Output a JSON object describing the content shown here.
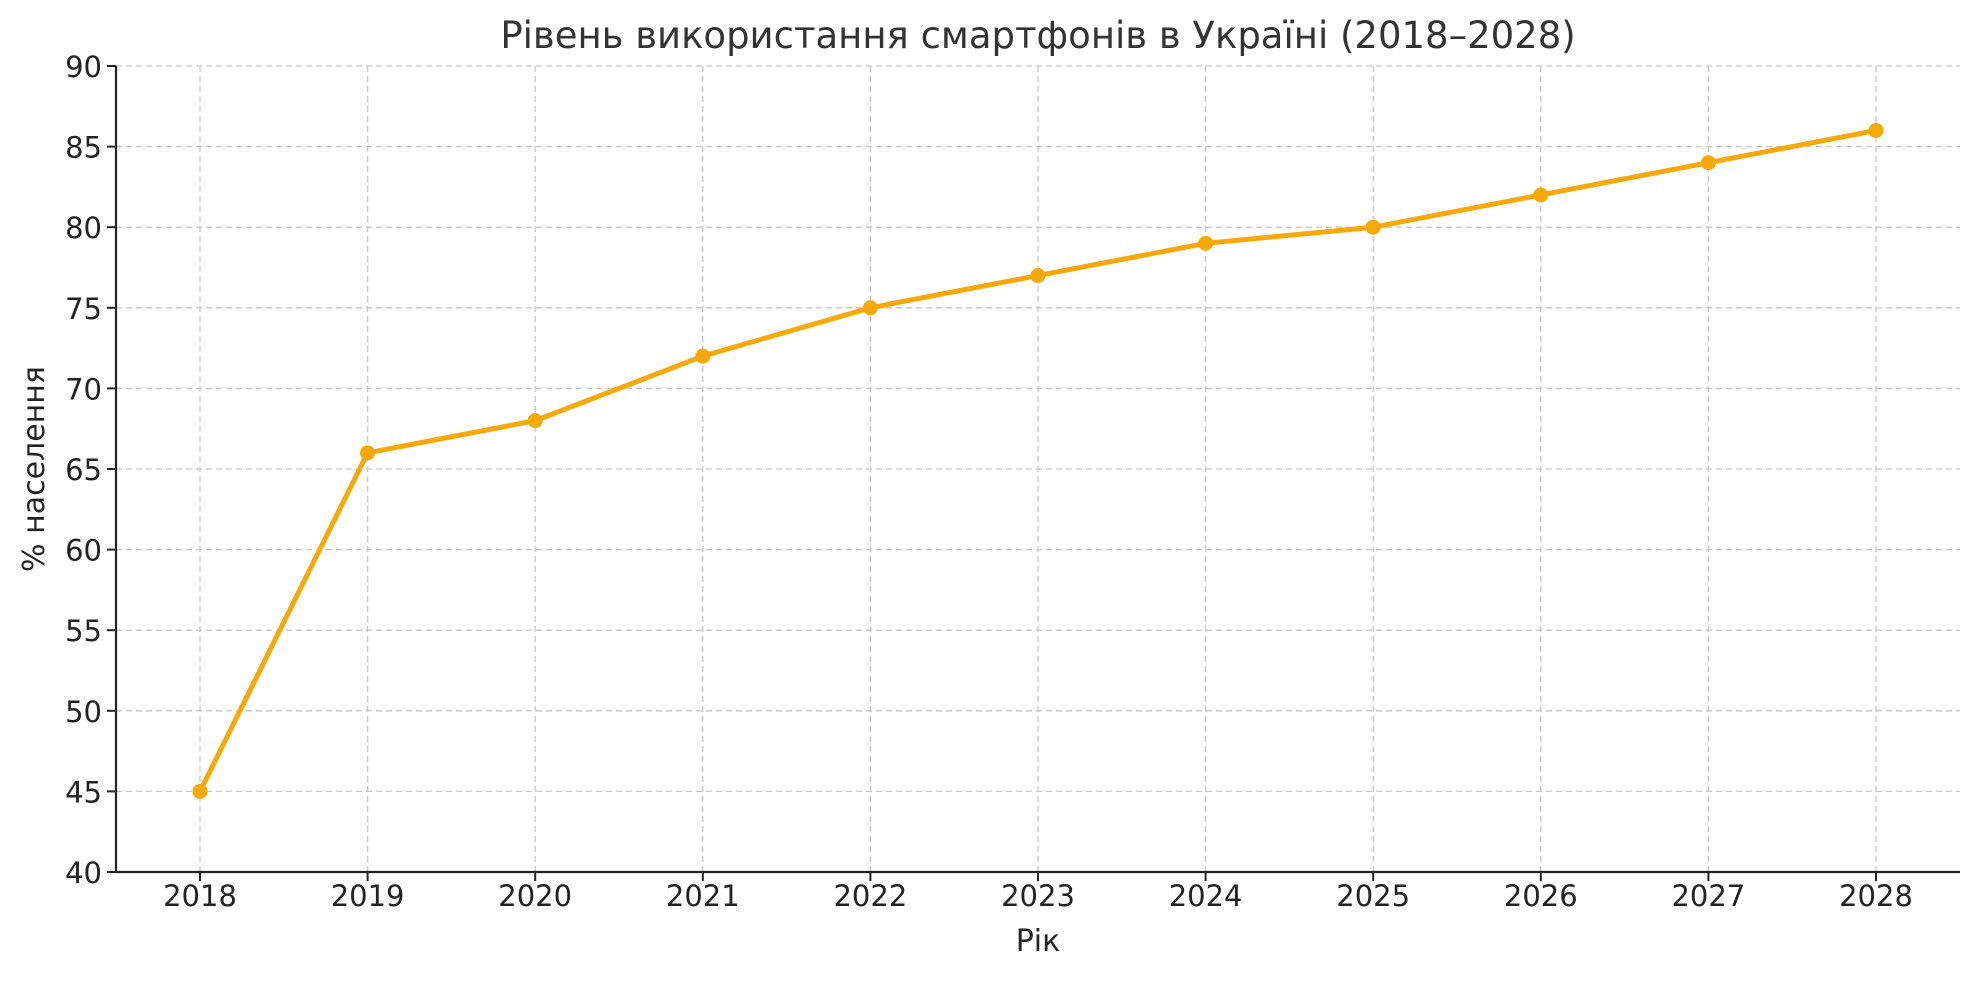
{
  "chart_data": {
    "type": "line",
    "title": "Рівень використання смартфонів в Україні (2018–2028)",
    "xlabel": "Рік",
    "ylabel": "% населення",
    "x": [
      2018,
      2019,
      2020,
      2021,
      2022,
      2023,
      2024,
      2025,
      2026,
      2027,
      2028
    ],
    "series": [
      {
        "values": [
          45,
          66,
          68,
          72,
          75,
          77,
          79,
          80,
          82,
          84,
          86
        ],
        "color": "#F7A90A",
        "marker": "circle"
      }
    ],
    "ylim": [
      40,
      90
    ],
    "yticks": [
      40,
      45,
      50,
      55,
      60,
      65,
      70,
      75,
      80,
      85,
      90
    ],
    "xticks": [
      "2018",
      "2019",
      "2020",
      "2021",
      "2022",
      "2023",
      "2024",
      "2025",
      "2026",
      "2027",
      "2028"
    ],
    "grid": true,
    "grid_style": "dashed",
    "legend": false
  }
}
